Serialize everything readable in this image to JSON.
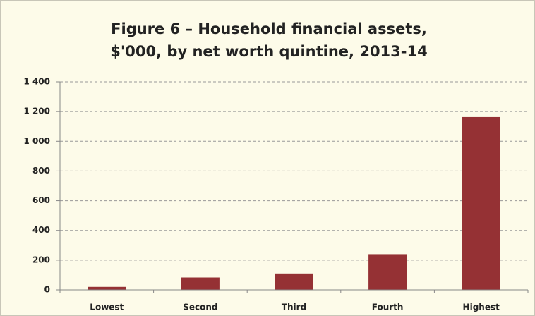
{
  "chart_data": {
    "type": "bar",
    "title": "Figure 6 – Household financial assets, $'000, by net worth quintine, 2013-14",
    "categories": [
      "Lowest",
      "Second",
      "Third",
      "Fourth",
      "Highest"
    ],
    "values": [
      20,
      83,
      110,
      240,
      1163
    ],
    "color": "#953134",
    "ylim": [
      0,
      1400
    ],
    "yticks": [
      0,
      200,
      400,
      600,
      800,
      {
        "value": 1000,
        "label": "1 000"
      },
      {
        "value": 1200,
        "label": "1 200"
      },
      {
        "value": 1400,
        "label": "1 400"
      }
    ],
    "grid": true
  }
}
